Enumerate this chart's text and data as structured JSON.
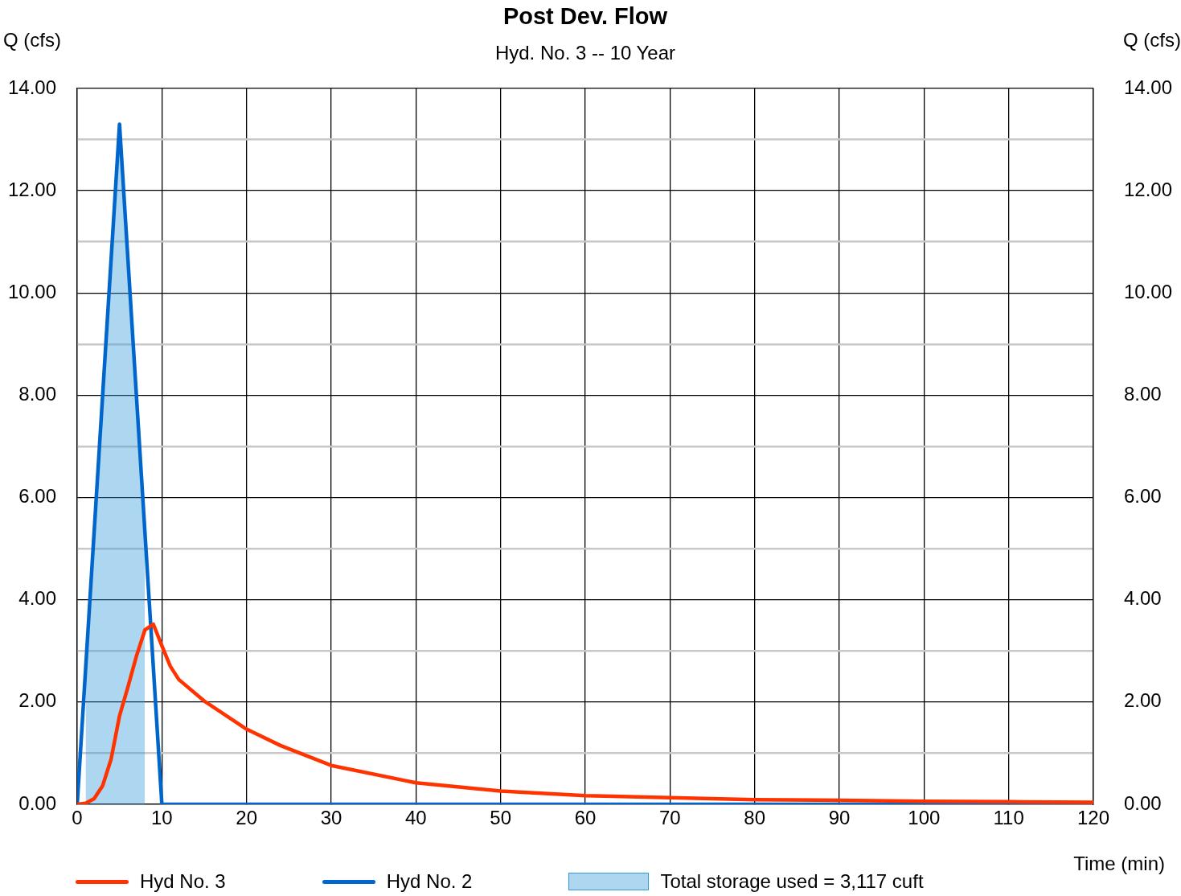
{
  "chart_data": {
    "type": "line",
    "title": "Post Dev. Flow",
    "subtitle": "Hyd. No. 3 -- 10 Year",
    "xlabel": "Time (min)",
    "ylabel": "Q (cfs)",
    "y2label": "Q (cfs)",
    "series": [
      {
        "name": "Hyd No. 3",
        "color": "#ff3300",
        "x": [
          0,
          1,
          2,
          3,
          4,
          5,
          6,
          7,
          8,
          9,
          10,
          11,
          12,
          15,
          20,
          24,
          30,
          40,
          50,
          60,
          70,
          80,
          90,
          100,
          110,
          120
        ],
        "values": [
          0,
          0.02,
          0.11,
          0.36,
          0.88,
          1.73,
          2.3,
          2.9,
          3.41,
          3.52,
          3.1,
          2.7,
          2.44,
          2.02,
          1.47,
          1.15,
          0.76,
          0.42,
          0.26,
          0.17,
          0.13,
          0.09,
          0.08,
          0.06,
          0.05,
          0.04
        ]
      },
      {
        "name": "Hyd No. 2",
        "color": "#0066cc",
        "x": [
          0,
          5,
          10,
          120
        ],
        "values": [
          0,
          13.3,
          0,
          0
        ]
      },
      {
        "name": "Total storage used = 3,117 cuft",
        "type": "area",
        "color": "#3399dd",
        "x": [
          1,
          2,
          3,
          4,
          5,
          6,
          7,
          8
        ],
        "values": [
          2.66,
          5.32,
          7.98,
          10.64,
          13.3,
          10.64,
          7.98,
          5.32
        ]
      }
    ],
    "xlim": [
      0,
      120
    ],
    "xticks": [
      0,
      10,
      20,
      30,
      40,
      50,
      60,
      70,
      80,
      90,
      100,
      110,
      120
    ],
    "ylim": [
      0,
      14
    ],
    "yticks": [
      {
        "value": 0,
        "label": "0.00"
      },
      {
        "value": 1,
        "label": null
      },
      {
        "value": 2,
        "label": "2.00"
      },
      {
        "value": 3,
        "label": null
      },
      {
        "value": 4,
        "label": "4.00"
      },
      {
        "value": 5,
        "label": null
      },
      {
        "value": 6,
        "label": "6.00"
      },
      {
        "value": 7,
        "label": null
      },
      {
        "value": 8,
        "label": "8.00"
      },
      {
        "value": 9,
        "label": null
      },
      {
        "value": 10,
        "label": "10.00"
      },
      {
        "value": 11,
        "label": null
      },
      {
        "value": 12,
        "label": "12.00"
      },
      {
        "value": 13,
        "label": null
      },
      {
        "value": 14,
        "label": "14.00"
      }
    ],
    "y2lim": [
      0,
      14
    ],
    "y2ticks": [
      {
        "value": 0,
        "label": "0.00"
      },
      {
        "value": 2,
        "label": "2.00"
      },
      {
        "value": 4,
        "label": "4.00"
      },
      {
        "value": 6,
        "label": "6.00"
      },
      {
        "value": 8,
        "label": "8.00"
      },
      {
        "value": 10,
        "label": "10.00"
      },
      {
        "value": 12,
        "label": "12.00"
      },
      {
        "value": 14,
        "label": "14.00"
      }
    ],
    "grid": true,
    "legend": "bottom",
    "marker": "none",
    "line_style": "solid"
  }
}
